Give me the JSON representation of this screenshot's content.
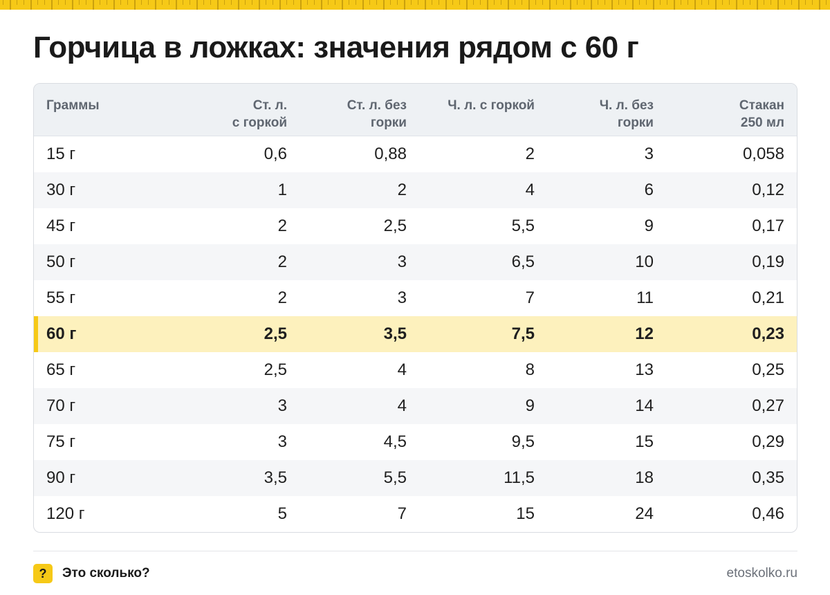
{
  "title": "Горчица в ложках: значения рядом с 60 г",
  "colors": {
    "accent": "#f6c917",
    "highlight_row": "#fdf1bd",
    "header_bg": "#eef1f4"
  },
  "table": {
    "headers": [
      [
        "Граммы"
      ],
      [
        "Ст. л.",
        "с горкой"
      ],
      [
        "Ст. л. без",
        "горки"
      ],
      [
        "Ч. л. с горкой"
      ],
      [
        "Ч. л. без",
        "горки"
      ],
      [
        "Стакан",
        "250 мл"
      ]
    ],
    "highlighted_row_index": 5,
    "rows": [
      [
        "15 г",
        "0,6",
        "0,88",
        "2",
        "3",
        "0,058"
      ],
      [
        "30 г",
        "1",
        "2",
        "4",
        "6",
        "0,12"
      ],
      [
        "45 г",
        "2",
        "2,5",
        "5,5",
        "9",
        "0,17"
      ],
      [
        "50 г",
        "2",
        "3",
        "6,5",
        "10",
        "0,19"
      ],
      [
        "55 г",
        "2",
        "3",
        "7",
        "11",
        "0,21"
      ],
      [
        "60 г",
        "2,5",
        "3,5",
        "7,5",
        "12",
        "0,23"
      ],
      [
        "65 г",
        "2,5",
        "4",
        "8",
        "13",
        "0,25"
      ],
      [
        "70 г",
        "3",
        "4",
        "9",
        "14",
        "0,27"
      ],
      [
        "75 г",
        "3",
        "4,5",
        "9,5",
        "15",
        "0,29"
      ],
      [
        "90 г",
        "3,5",
        "5,5",
        "11,5",
        "18",
        "0,35"
      ],
      [
        "120 г",
        "5",
        "7",
        "15",
        "24",
        "0,46"
      ]
    ]
  },
  "footer": {
    "badge_glyph": "?",
    "brand": "Это сколько?",
    "site": "etoskolko.ru"
  }
}
